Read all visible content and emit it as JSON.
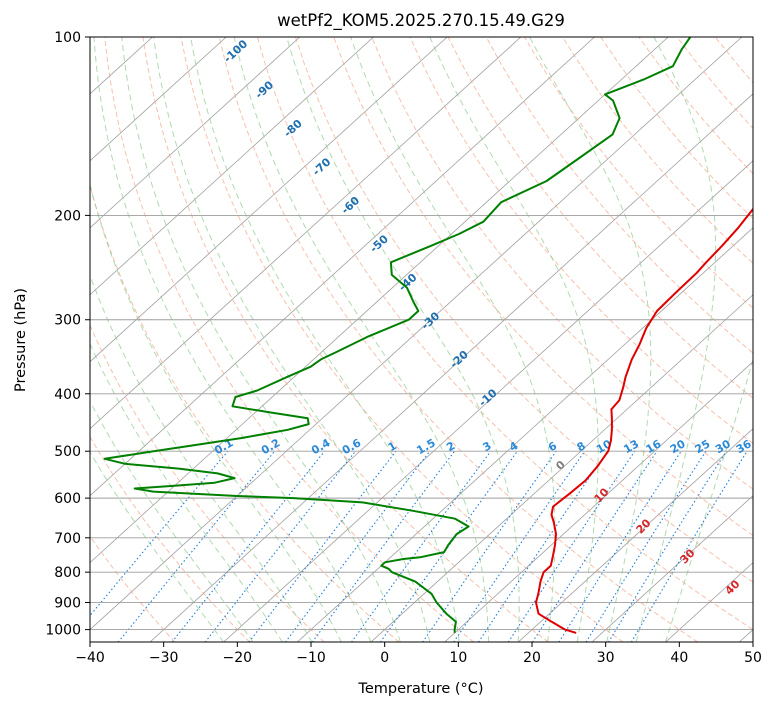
{
  "chart_data": {
    "type": "skew-t",
    "title": "wetPf2_KOM5.2025.270.15.49.G29",
    "xlabel": "Temperature (°C)",
    "ylabel": "Pressure (hPa)",
    "xlim": [
      -40,
      50
    ],
    "ylim": [
      1050,
      100
    ],
    "x_ticks": [
      -40,
      -30,
      -20,
      -10,
      0,
      10,
      20,
      30,
      40,
      50
    ],
    "x_tick_labels": [
      "−40",
      "−30",
      "−20",
      "−10",
      "0",
      "10",
      "20",
      "30",
      "40",
      "50"
    ],
    "y_ticks": [
      1000,
      900,
      800,
      700,
      600,
      500,
      400,
      300,
      200,
      100
    ],
    "y_tick_labels": [
      "1000",
      "900",
      "800",
      "700",
      "600",
      "500",
      "400",
      "300",
      "200",
      "100"
    ],
    "colors": {
      "temperature": "#e00000",
      "dewpoint": "#008000",
      "isotherm": "#808080",
      "dry_adiabat": "#f4a58a",
      "moist_adiabat": "#8fc98f",
      "mixing_ratio": "#1e7fd8",
      "isotherm_label": "#1f6fb0",
      "adiabat_label": "#d62728",
      "gray_label": "#7f7f7f"
    },
    "series": [
      {
        "name": "Temperature",
        "color": "#e00000",
        "points": [
          [
            100,
            -18
          ],
          [
            105,
            -16.5
          ],
          [
            112,
            -16.2
          ],
          [
            120,
            -16.3
          ],
          [
            128,
            -17.6
          ],
          [
            137,
            -18.5
          ],
          [
            146,
            -17.5
          ],
          [
            155,
            -16.5
          ],
          [
            165,
            -15.5
          ],
          [
            180,
            -14.0
          ],
          [
            195,
            -12.8
          ],
          [
            210,
            -12.0
          ],
          [
            225,
            -11.5
          ],
          [
            240,
            -11.2
          ],
          [
            250,
            -10.9
          ],
          [
            270,
            -10.8
          ],
          [
            290,
            -10.6
          ],
          [
            310,
            -9.5
          ],
          [
            330,
            -8.0
          ],
          [
            350,
            -6.8
          ],
          [
            375,
            -5.0
          ],
          [
            390,
            -3.8
          ],
          [
            410,
            -2.4
          ],
          [
            425,
            -2.1
          ],
          [
            440,
            -0.7
          ],
          [
            460,
            1.0
          ],
          [
            480,
            2.5
          ],
          [
            500,
            3.7
          ],
          [
            530,
            4.5
          ],
          [
            560,
            5.0
          ],
          [
            590,
            4.8
          ],
          [
            600,
            4.7
          ],
          [
            620,
            4.5
          ],
          [
            640,
            5.5
          ],
          [
            660,
            7.0
          ],
          [
            690,
            9.0
          ],
          [
            720,
            10.5
          ],
          [
            750,
            11.8
          ],
          [
            780,
            13.0
          ],
          [
            800,
            13.0
          ],
          [
            830,
            14.0
          ],
          [
            870,
            15.5
          ],
          [
            900,
            16.5
          ],
          [
            940,
            18.5
          ],
          [
            970,
            21.5
          ],
          [
            1000,
            24.5
          ],
          [
            1013,
            26.5
          ]
        ]
      },
      {
        "name": "Dewpoint",
        "color": "#008000",
        "points": [
          [
            100,
            -47
          ],
          [
            105,
            -46.3
          ],
          [
            112,
            -45
          ],
          [
            118,
            -47
          ],
          [
            125,
            -50
          ],
          [
            128,
            -48
          ],
          [
            137,
            -44.5
          ],
          [
            146,
            -43
          ],
          [
            160,
            -44
          ],
          [
            175,
            -45
          ],
          [
            190,
            -48
          ],
          [
            205,
            -47.5
          ],
          [
            215,
            -49
          ],
          [
            225,
            -51
          ],
          [
            240,
            -54
          ],
          [
            252,
            -52
          ],
          [
            265,
            -48
          ],
          [
            280,
            -45
          ],
          [
            290,
            -43
          ],
          [
            300,
            -43
          ],
          [
            320,
            -46
          ],
          [
            340,
            -48
          ],
          [
            350,
            -49
          ],
          [
            360,
            -49.3
          ],
          [
            375,
            -51
          ],
          [
            395,
            -53
          ],
          [
            405,
            -55
          ],
          [
            420,
            -54
          ],
          [
            430,
            -48
          ],
          [
            440,
            -42
          ],
          [
            450,
            -41
          ],
          [
            460,
            -43
          ],
          [
            475,
            -48
          ],
          [
            490,
            -54
          ],
          [
            500,
            -58
          ],
          [
            515,
            -63.5
          ],
          [
            525,
            -60
          ],
          [
            535,
            -52
          ],
          [
            545,
            -46
          ],
          [
            555,
            -43
          ],
          [
            565,
            -45
          ],
          [
            572,
            -50
          ],
          [
            578,
            -55
          ],
          [
            585,
            -52
          ],
          [
            595,
            -40
          ],
          [
            600,
            -32
          ],
          [
            610,
            -22
          ],
          [
            630,
            -14
          ],
          [
            650,
            -7
          ],
          [
            670,
            -4
          ],
          [
            690,
            -4.5
          ],
          [
            720,
            -4
          ],
          [
            740,
            -3.5
          ],
          [
            755,
            -6
          ],
          [
            760,
            -8
          ],
          [
            770,
            -10
          ],
          [
            780,
            -10
          ],
          [
            790,
            -8.5
          ],
          [
            800,
            -7.6
          ],
          [
            830,
            -3
          ],
          [
            870,
            1
          ],
          [
            900,
            3
          ],
          [
            940,
            6
          ],
          [
            970,
            8.5
          ],
          [
            1000,
            9.5
          ],
          [
            1013,
            10
          ]
        ]
      }
    ],
    "isotherm_labels": [
      "-100",
      "-90",
      "-80",
      "-70",
      "-60",
      "-50",
      "-40",
      "-30",
      "-20",
      "-10",
      "0"
    ],
    "isotherm_values": [
      -100,
      -90,
      -80,
      -70,
      -60,
      -50,
      -40,
      -30,
      -20,
      -10,
      0
    ],
    "mixing_ratio_labels": [
      "0.1",
      "0.2",
      "0.4",
      "0.6",
      "1",
      "1.5",
      "2",
      "3",
      "4",
      "6",
      "8",
      "10",
      "13",
      "16",
      "20",
      "25",
      "30",
      "36"
    ],
    "mixing_ratio_values": [
      0.1,
      0.2,
      0.4,
      0.6,
      1,
      1.5,
      2,
      3,
      4,
      6,
      8,
      10,
      13,
      16,
      20,
      25,
      30,
      36
    ],
    "adiabat_labels": [
      "10",
      "20",
      "30",
      "40"
    ],
    "adiabat_values": [
      10,
      20,
      30,
      40
    ]
  }
}
